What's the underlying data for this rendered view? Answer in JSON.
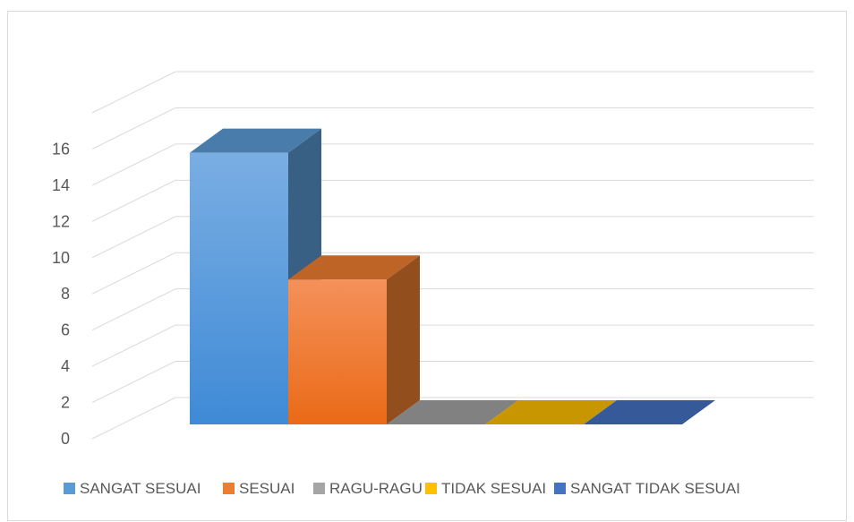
{
  "chart_data": {
    "type": "bar",
    "categories": [
      "SANGAT SESUAI",
      "SESUAI",
      "RAGU-RAGU",
      "TIDAK SESUAI",
      "SANGAT TIDAK SESUAI"
    ],
    "values": [
      15,
      8,
      0,
      0,
      0
    ],
    "ylim": [
      0,
      18
    ],
    "yticks": [
      0,
      2,
      4,
      6,
      8,
      10,
      12,
      14,
      16
    ],
    "grid": true,
    "legend": "bottom",
    "style": "3d-column",
    "colors": [
      "#5B9BD5",
      "#ED7D31",
      "#A5A5A5",
      "#FFC000",
      "#4472C4"
    ],
    "title": "",
    "xlabel": "",
    "ylabel": ""
  }
}
